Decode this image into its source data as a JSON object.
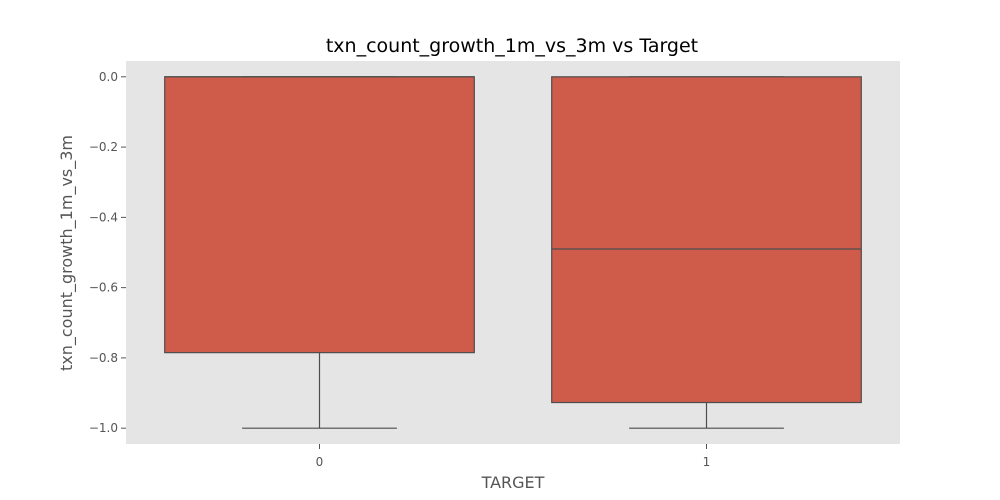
{
  "chart_data": {
    "type": "box",
    "title": "txn_count_growth_1m_vs_3m vs Target",
    "xlabel": "TARGET",
    "ylabel": "txn_count_growth_1m_vs_3m",
    "categories": [
      "0",
      "1"
    ],
    "boxes": [
      {
        "category": "0",
        "whisker_low": -1.0,
        "q1": -0.785,
        "median": 0.0,
        "q3": 0.0,
        "whisker_high": 0.0
      },
      {
        "category": "1",
        "whisker_low": -1.0,
        "q1": -0.927,
        "median": -0.49,
        "q3": 0.0,
        "whisker_high": 0.0
      }
    ],
    "yticks": [
      "0.0",
      "−0.2",
      "−0.4",
      "−0.6",
      "−0.8",
      "−1.0"
    ],
    "ylim": [
      -1.045,
      0.045
    ],
    "grid": false,
    "colors": {
      "box_fill": "#cf5b4a",
      "box_edge": "#4d4d4d",
      "plot_background": "#e5e5e5"
    }
  }
}
